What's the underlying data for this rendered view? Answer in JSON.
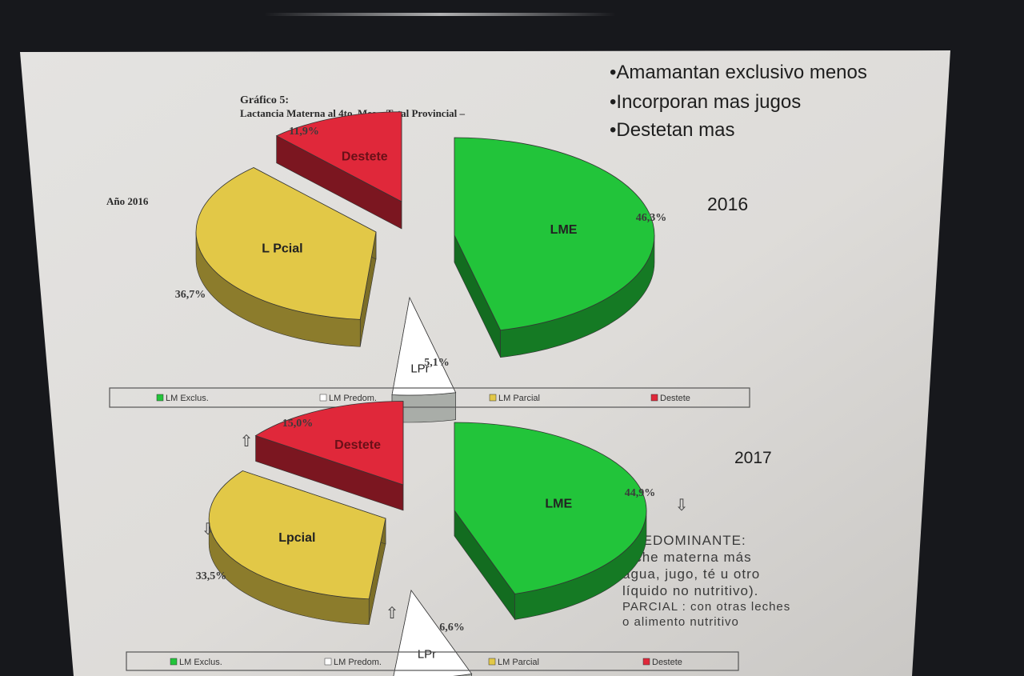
{
  "slide": {
    "header_title": "Gráfico 5:",
    "header_subtitle": "Lactancia Materna al 4to. Mes – Total Provincial –",
    "bullets": [
      "•Amamantan exclusivo menos",
      "•Incorporan mas jugos",
      "•Destetan mas"
    ],
    "note_lines": [
      "PREDOMINANTE:",
      "leche materna más",
      "agua, jugo, té u otro",
      "líquido no nutritivo).",
      "PARCIAL : con otras leches",
      "o alimento nutritivo"
    ]
  },
  "chart_data": [
    {
      "type": "pie",
      "title": "Año 2016",
      "year_label": "2016",
      "style": "3d-exploded",
      "legend": [
        "LM Exclus.",
        "LM Predom.",
        "LM Parcial",
        "Destete"
      ],
      "legend_placement": "bottom",
      "slices": [
        {
          "label": "LME",
          "legend": "LM Exclus.",
          "value": 46.3,
          "value_label": "46,3%",
          "color": "#22c43a",
          "trend": ""
        },
        {
          "label": "LPr",
          "legend": "LM Predom.",
          "value": 5.1,
          "value_label": "5,1%",
          "color": "#ffffff",
          "trend": ""
        },
        {
          "label": "L Pcial",
          "legend": "LM Parcial",
          "value": 36.7,
          "value_label": "36,7%",
          "color": "#e2c847",
          "trend": ""
        },
        {
          "label": "Destete",
          "legend": "Destete",
          "value": 11.9,
          "value_label": "11,9%",
          "color": "#e0283a",
          "trend": ""
        }
      ]
    },
    {
      "type": "pie",
      "title": "",
      "year_label": "2017",
      "style": "3d-exploded",
      "legend": [
        "LM Exclus.",
        "LM Predom.",
        "LM Parcial",
        "Destete"
      ],
      "legend_placement": "bottom",
      "slices": [
        {
          "label": "LME",
          "legend": "LM Exclus.",
          "value": 44.9,
          "value_label": "44,9%",
          "color": "#22c43a",
          "trend": "down"
        },
        {
          "label": "LPr",
          "legend": "LM Predom.",
          "value": 6.6,
          "value_label": "6,6%",
          "color": "#ffffff",
          "trend": "up"
        },
        {
          "label": "Lpcial",
          "legend": "LM Parcial",
          "value": 33.5,
          "value_label": "33,5%",
          "color": "#e2c847",
          "trend": "down"
        },
        {
          "label": "Destete",
          "legend": "Destete",
          "value": 15.0,
          "value_label": "15,0%",
          "color": "#e0283a",
          "trend": "up"
        }
      ]
    }
  ]
}
